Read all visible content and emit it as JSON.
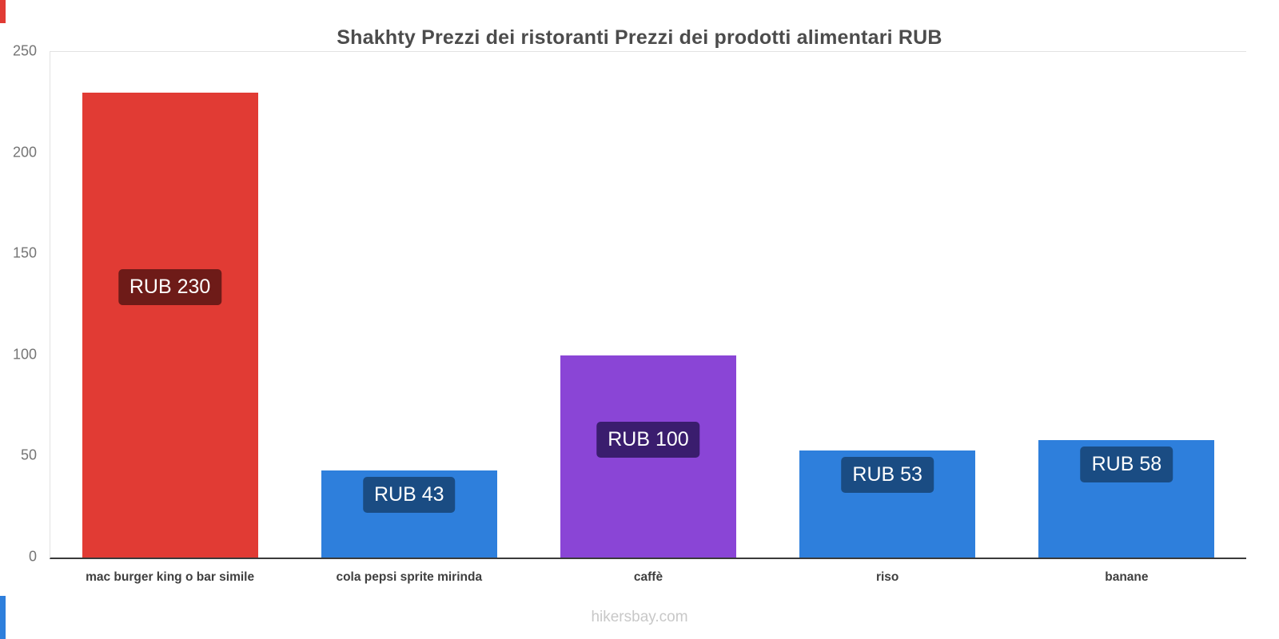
{
  "page": {
    "title": "Shakhty Prezzi dei ristoranti Prezzi dei prodotti alimentari RUB",
    "footer_link": "hikersbay.com",
    "accent_colors": {
      "top": "#e13b34",
      "bottom": "#2e7fdc"
    }
  },
  "chart_data": {
    "type": "bar",
    "title": "Shakhty Prezzi dei ristoranti Prezzi dei prodotti alimentari RUB",
    "categories": [
      "mac burger king o bar simile",
      "cola pepsi sprite mirinda",
      "caffè",
      "riso",
      "banane"
    ],
    "values": [
      230,
      43,
      100,
      53,
      58
    ],
    "value_labels": [
      "RUB 230",
      "RUB 43",
      "RUB 100",
      "RUB 53",
      "RUB 58"
    ],
    "bar_colors": [
      "#e13b34",
      "#2e7fdc",
      "#8a45d6",
      "#2e7fdc",
      "#2e7fdc"
    ],
    "badge_colors": [
      "#6e1b18",
      "#1a4c83",
      "#3a1d6e",
      "#1a4c83",
      "#1a4c83"
    ],
    "currency": "RUB",
    "ylim": [
      0,
      250
    ],
    "yticks": [
      0,
      50,
      100,
      150,
      200,
      250
    ],
    "xlabel": "",
    "ylabel": "",
    "grid": "top boundary line only, no inner gridlines",
    "legend": "none"
  }
}
